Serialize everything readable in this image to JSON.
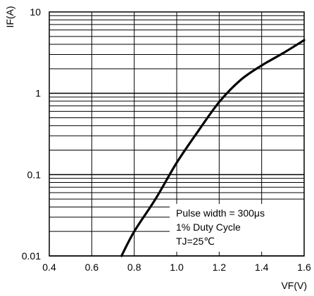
{
  "chart_data": {
    "type": "line",
    "title": "",
    "xlabel": "VF(V)",
    "ylabel": "IF(A)",
    "x_scale": "linear",
    "y_scale": "log",
    "xlim": [
      0.4,
      1.6
    ],
    "ylim": [
      0.01,
      10
    ],
    "x_ticks": [
      0.4,
      0.6,
      0.8,
      1.0,
      1.2,
      1.4,
      1.6
    ],
    "x_tick_labels": [
      "0.4",
      "0.6",
      "0.8",
      "1.0",
      "1.2",
      "1.4",
      "1.6"
    ],
    "y_ticks": [
      0.01,
      0.1,
      1,
      10
    ],
    "y_tick_labels": [
      "0.01",
      "0.1",
      "1",
      "10"
    ],
    "grid": true,
    "series": [
      {
        "name": "",
        "color": "#000000",
        "x": [
          0.74,
          0.8,
          0.9,
          1.0,
          1.1,
          1.2,
          1.3,
          1.4,
          1.5,
          1.6
        ],
        "y": [
          0.01,
          0.02,
          0.05,
          0.14,
          0.34,
          0.78,
          1.45,
          2.2,
          3.1,
          4.5
        ]
      }
    ],
    "annotations": [
      "Pulse width = 300μs",
      "1% Duty Cycle",
      "TJ=25℃"
    ]
  }
}
